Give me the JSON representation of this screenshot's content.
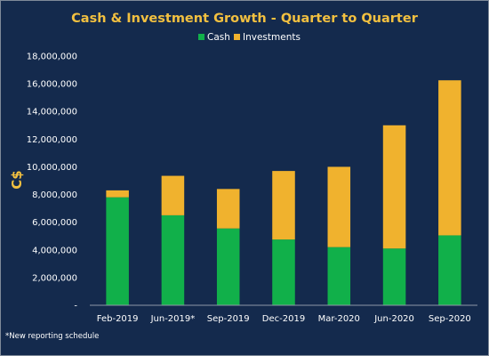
{
  "chart_data": {
    "type": "bar",
    "stacked": true,
    "title": "Cash & Investment Growth - Quarter to Quarter",
    "ylabel": "C$",
    "xlabel": "",
    "categories": [
      "Feb-2019",
      "Jun-2019*",
      "Sep-2019",
      "Dec-2019",
      "Mar-2020",
      "Jun-2020",
      "Sep-2020"
    ],
    "series": [
      {
        "name": "Cash",
        "color": "#11b04a",
        "values": [
          7800000,
          6500000,
          5550000,
          4750000,
          4200000,
          4100000,
          5050000
        ]
      },
      {
        "name": "Investments",
        "color": "#f0b22e",
        "values": [
          500000,
          2850000,
          2850000,
          4950000,
          5800000,
          8900000,
          11200000
        ]
      }
    ],
    "ylim": [
      0,
      18000000
    ],
    "yticks": [
      "-",
      "2,000,000",
      "4,000,000",
      "6,000,000",
      "8,000,000",
      "10,000,000",
      "12,000,000",
      "14,000,000",
      "16,000,000",
      "18,000,000"
    ],
    "grid": false,
    "legend_position": "top-center",
    "footnote": "*New reporting schedule",
    "colors": {
      "background": "#142a4d",
      "title": "#f2c040",
      "text": "#ffffff",
      "axis": "#8e97a6"
    }
  }
}
